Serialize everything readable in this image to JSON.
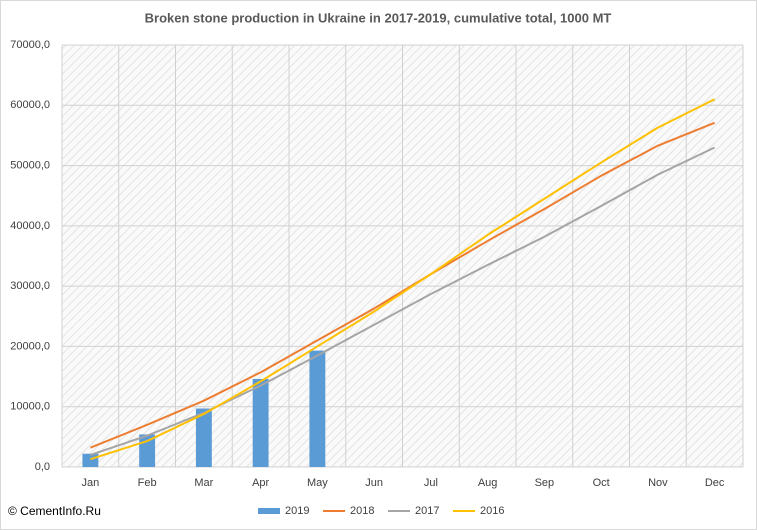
{
  "chart_data": {
    "type": "combo",
    "title": "Broken stone production in Ukraine in 2017-2019,  cumulative total, 1000  MT",
    "source": "© CementInfo.Ru",
    "categories": [
      "Jan",
      "Feb",
      "Mar",
      "Apr",
      "May",
      "Jun",
      "Jul",
      "Aug",
      "Sep",
      "Oct",
      "Nov",
      "Dec"
    ],
    "series": [
      {
        "name": "2019",
        "type": "bar",
        "color": "#5b9bd5",
        "values": [
          2200,
          5400,
          9700,
          14600,
          19300,
          null,
          null,
          null,
          null,
          null,
          null,
          null
        ]
      },
      {
        "name": "2018",
        "type": "line",
        "color": "#ed7d31",
        "values": [
          3200,
          7000,
          11000,
          15700,
          21000,
          26300,
          32000,
          37500,
          42800,
          48300,
          53300,
          57100
        ]
      },
      {
        "name": "2017",
        "type": "line",
        "color": "#a5a5a5",
        "values": [
          2000,
          5200,
          9000,
          13500,
          18500,
          23600,
          28700,
          33500,
          38200,
          43300,
          48500,
          53000
        ]
      },
      {
        "name": "2016",
        "type": "line",
        "color": "#ffc000",
        "values": [
          1300,
          4300,
          8800,
          14200,
          20000,
          25800,
          32000,
          38500,
          44500,
          50500,
          56300,
          61000
        ]
      }
    ],
    "ylim": [
      0,
      70000
    ],
    "yticks": [
      {
        "value": 0,
        "label": "0,0"
      },
      {
        "value": 10000,
        "label": "10000,0"
      },
      {
        "value": 20000,
        "label": "20000,0"
      },
      {
        "value": 30000,
        "label": "30000,0"
      },
      {
        "value": 40000,
        "label": "40000,0"
      },
      {
        "value": 50000,
        "label": "50000,0"
      },
      {
        "value": 60000,
        "label": "60000,0"
      },
      {
        "value": 70000,
        "label": "70000,0"
      }
    ],
    "grid": true,
    "legend": "bottom"
  }
}
